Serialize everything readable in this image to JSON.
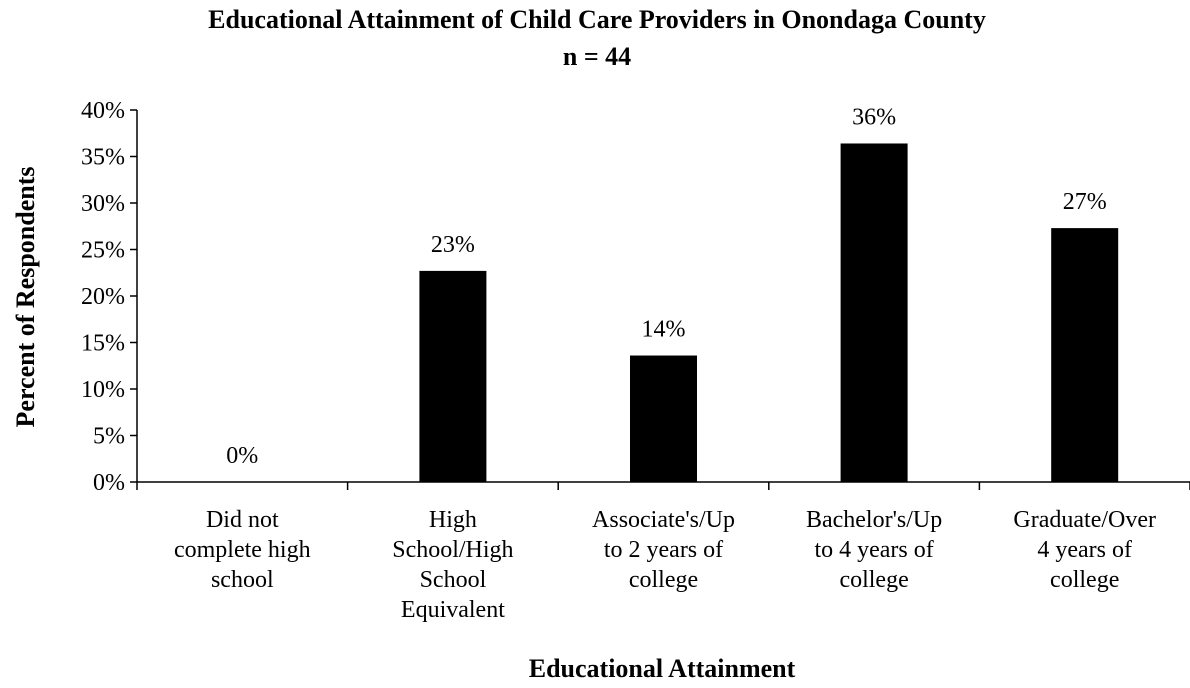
{
  "chart_data": {
    "type": "bar",
    "title": "Educational Attainment of Child Care Providers in Onondaga County",
    "subtitle": "n = 44",
    "xlabel": "Educational Attainment",
    "ylabel": "Percent of Respondents",
    "categories": [
      [
        "Did not",
        "complete high",
        "school"
      ],
      [
        "High",
        "School/High",
        "School",
        "Equivalent"
      ],
      [
        "Associate's/Up",
        "to 2 years of",
        "college"
      ],
      [
        "Bachelor's/Up",
        "to 4 years of",
        "college"
      ],
      [
        "Graduate/Over",
        "4 years of",
        "college"
      ]
    ],
    "values": [
      0,
      22.7,
      13.6,
      36.4,
      27.3
    ],
    "data_labels": [
      "0%",
      "23%",
      "14%",
      "36%",
      "27%"
    ],
    "ylim": [
      0,
      40
    ],
    "yticks": [
      0,
      5,
      10,
      15,
      20,
      25,
      30,
      35,
      40
    ],
    "ytick_labels": [
      "0%",
      "5%",
      "10%",
      "15%",
      "20%",
      "25%",
      "30%",
      "35%",
      "40%"
    ],
    "bar_color": "#000000",
    "grid": false,
    "legend": "none"
  }
}
